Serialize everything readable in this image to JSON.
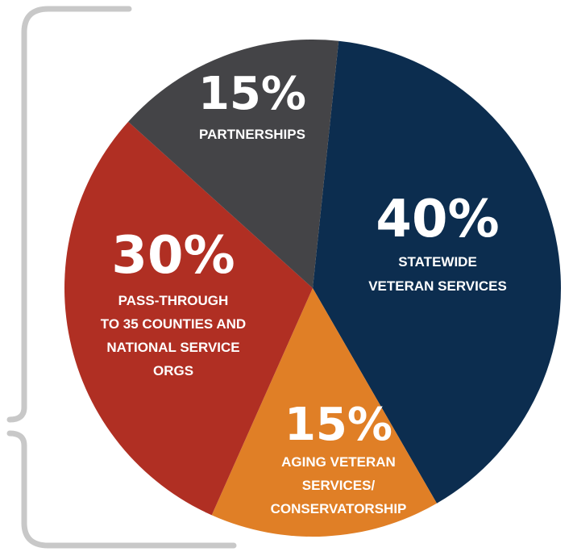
{
  "chart_data": {
    "type": "pie",
    "slices": [
      {
        "value": 40,
        "percent_label": "40%",
        "label_lines": [
          "STATEWIDE",
          "VETERAN SERVICES"
        ],
        "color": "#0c2d4f"
      },
      {
        "value": 15,
        "percent_label": "15%",
        "label_lines": [
          "AGING VETERAN",
          "SERVICES/",
          "CONSERVATORSHIP"
        ],
        "color": "#e07f26"
      },
      {
        "value": 30,
        "percent_label": "30%",
        "label_lines": [
          "PASS-THROUGH",
          "TO 35 COUNTIES AND",
          "NATIONAL SERVICE",
          "ORGS"
        ],
        "color": "#b02f23"
      },
      {
        "value": 15,
        "percent_label": "15%",
        "label_lines": [
          "PARTNERSHIPS"
        ],
        "color": "#444447"
      }
    ],
    "bracket_color": "#c8c8c8"
  }
}
